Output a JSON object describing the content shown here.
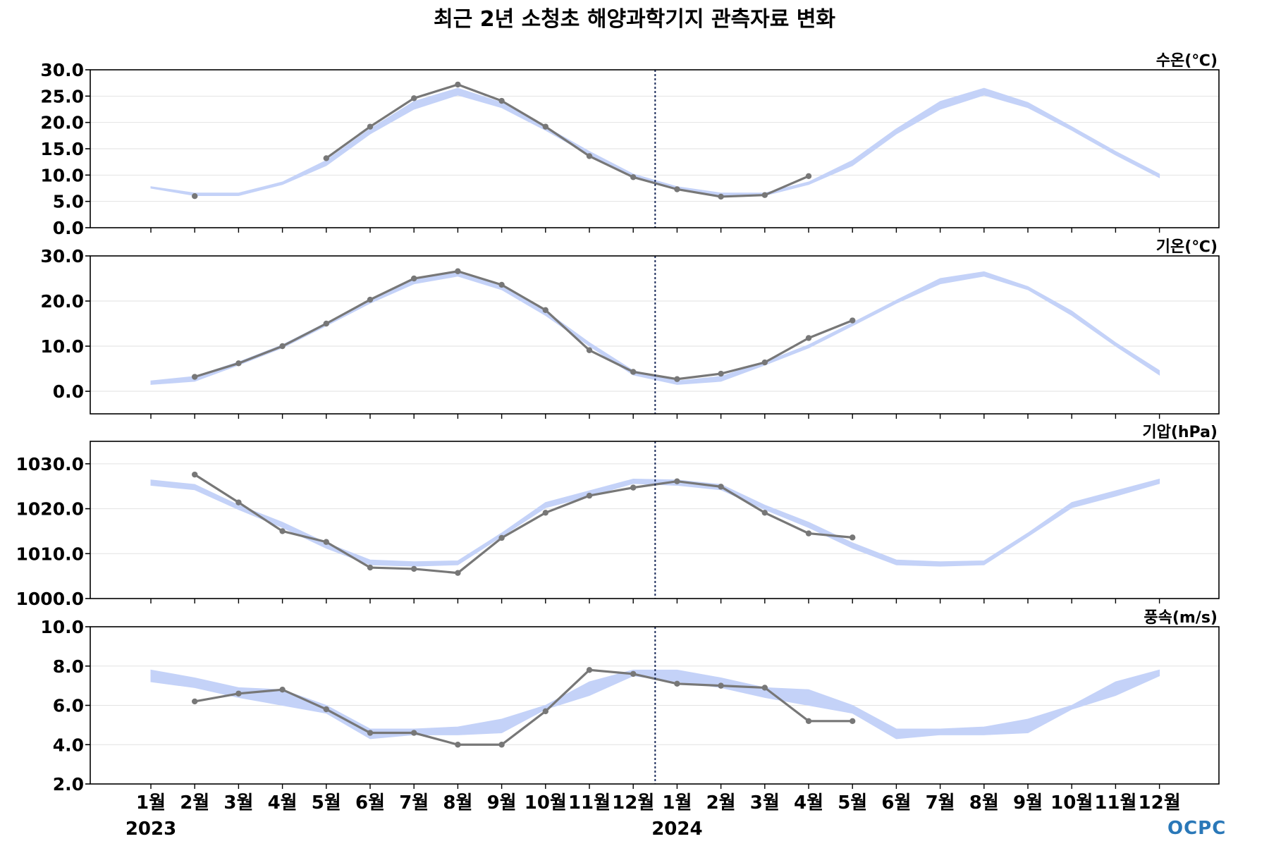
{
  "title": "최근 2년 소청초 해양과학기지 관측자료 변화",
  "logo": "OCPC",
  "colors": {
    "normal_band": "#c4d2f8",
    "observed": "#777777",
    "year_divider": "#1a2a5a",
    "frame": "#000000",
    "grid": "#e2e2e2"
  },
  "chart_data": {
    "type": "line",
    "x_labels": [
      "1월",
      "2월",
      "3월",
      "4월",
      "5월",
      "6월",
      "7월",
      "8월",
      "9월",
      "10월",
      "11월",
      "12월",
      "1월",
      "2월",
      "3월",
      "4월",
      "5월",
      "6월",
      "7월",
      "8월",
      "9월",
      "10월",
      "11월",
      "12월"
    ],
    "year_labels": [
      {
        "label": "2023",
        "index": 0
      },
      {
        "label": "2024",
        "index": 12
      }
    ],
    "year_divider_after_index": 11,
    "panels": [
      {
        "id": "water-temp",
        "title": "수온(℃)",
        "ylim": [
          0,
          30
        ],
        "yticks": [
          "0.0",
          "5.0",
          "10.0",
          "15.0",
          "20.0",
          "25.0",
          "30.0"
        ],
        "ytick_values": [
          0,
          5,
          10,
          15,
          20,
          25,
          30
        ],
        "normal_low": [
          7.5,
          6.1,
          6.1,
          8.2,
          11.8,
          17.8,
          22.5,
          25.2,
          22.8,
          18.5,
          13.8,
          9.5,
          7.5,
          6.1,
          6.1,
          8.2,
          11.8,
          17.8,
          22.5,
          25.2,
          22.8,
          18.5,
          13.8,
          9.5
        ],
        "normal_high": [
          7.8,
          6.6,
          6.6,
          8.7,
          12.8,
          18.8,
          24.0,
          26.5,
          23.8,
          19.2,
          14.5,
          10.2,
          7.8,
          6.6,
          6.6,
          8.7,
          12.8,
          18.8,
          24.0,
          26.5,
          23.8,
          19.2,
          14.5,
          10.2
        ],
        "observed": [
          null,
          6.0,
          null,
          null,
          13.2,
          19.2,
          24.6,
          27.2,
          24.1,
          19.2,
          13.6,
          9.6,
          7.3,
          5.9,
          6.2,
          9.8,
          null,
          null,
          null,
          null,
          null,
          null,
          null,
          null
        ]
      },
      {
        "id": "air-temp",
        "title": "기온(℃)",
        "ylim": [
          -5,
          30
        ],
        "yticks": [
          "0.0",
          "10.0",
          "20.0",
          "30.0"
        ],
        "ytick_values": [
          0,
          10,
          20,
          30
        ],
        "normal_low": [
          1.5,
          2.2,
          5.8,
          9.6,
          14.5,
          19.5,
          23.8,
          25.5,
          22.5,
          16.8,
          10.0,
          3.6,
          1.5,
          2.2,
          5.8,
          9.6,
          14.5,
          19.5,
          23.8,
          25.5,
          22.5,
          16.8,
          10.0,
          3.6
        ],
        "normal_high": [
          2.3,
          3.3,
          6.5,
          10.3,
          15.2,
          20.2,
          25.0,
          26.5,
          23.2,
          17.8,
          10.8,
          4.6,
          2.3,
          3.3,
          6.5,
          10.3,
          15.2,
          20.2,
          25.0,
          26.5,
          23.2,
          17.8,
          10.8,
          4.6
        ],
        "observed": [
          null,
          3.2,
          6.2,
          10.0,
          15.0,
          20.3,
          25.0,
          26.6,
          23.6,
          18.0,
          9.1,
          4.3,
          2.7,
          3.9,
          6.4,
          11.8,
          15.7,
          null,
          null,
          null,
          null,
          null,
          null,
          null
        ]
      },
      {
        "id": "air-pressure",
        "title": "기압(hPa)",
        "ylim": [
          1000,
          1035
        ],
        "yticks": [
          "1000.0",
          "1010.0",
          "1020.0",
          "1030.0"
        ],
        "ytick_values": [
          1000,
          1010,
          1020,
          1030
        ],
        "normal_low": [
          1025.2,
          1024.2,
          1019.8,
          1015.8,
          1011.2,
          1007.5,
          1007.2,
          1007.5,
          1013.8,
          1020.2,
          1022.8,
          1025.6,
          1025.2,
          1024.2,
          1019.8,
          1015.8,
          1011.2,
          1007.5,
          1007.2,
          1007.5,
          1013.8,
          1020.2,
          1022.8,
          1025.6
        ],
        "normal_high": [
          1026.4,
          1025.4,
          1020.8,
          1017.0,
          1012.4,
          1008.6,
          1008.2,
          1008.4,
          1014.6,
          1021.4,
          1024.0,
          1026.6,
          1026.4,
          1025.4,
          1020.8,
          1017.0,
          1012.4,
          1008.6,
          1008.2,
          1008.4,
          1014.6,
          1021.4,
          1024.0,
          1026.6
        ],
        "observed": [
          null,
          1027.6,
          1021.4,
          1015.0,
          1012.6,
          1006.9,
          1006.6,
          1005.7,
          1013.5,
          1019.1,
          1022.9,
          1024.7,
          1026.1,
          1024.9,
          1019.1,
          1014.5,
          1013.6,
          null,
          null,
          null,
          null,
          null,
          null,
          null
        ]
      },
      {
        "id": "wind-speed",
        "title": "풍속(m/s)",
        "ylim": [
          2,
          10
        ],
        "yticks": [
          "2.0",
          "4.0",
          "6.0",
          "8.0",
          "10.0"
        ],
        "ytick_values": [
          2,
          4,
          6,
          8,
          10
        ],
        "normal_low": [
          7.2,
          6.9,
          6.4,
          6.0,
          5.6,
          4.3,
          4.5,
          4.5,
          4.6,
          5.8,
          6.5,
          7.5,
          7.2,
          6.9,
          6.4,
          6.0,
          5.6,
          4.3,
          4.5,
          4.5,
          4.6,
          5.8,
          6.5,
          7.5
        ],
        "normal_high": [
          7.8,
          7.4,
          6.9,
          6.8,
          6.0,
          4.8,
          4.8,
          4.9,
          5.3,
          6.0,
          7.2,
          7.8,
          7.8,
          7.4,
          6.9,
          6.8,
          6.0,
          4.8,
          4.8,
          4.9,
          5.3,
          6.0,
          7.2,
          7.8
        ],
        "observed": [
          null,
          6.2,
          6.6,
          6.8,
          5.8,
          4.6,
          4.6,
          4.0,
          4.0,
          5.7,
          7.8,
          7.6,
          7.1,
          7.0,
          6.9,
          5.2,
          5.2,
          null,
          null,
          null,
          null,
          null,
          null,
          null
        ]
      }
    ]
  }
}
